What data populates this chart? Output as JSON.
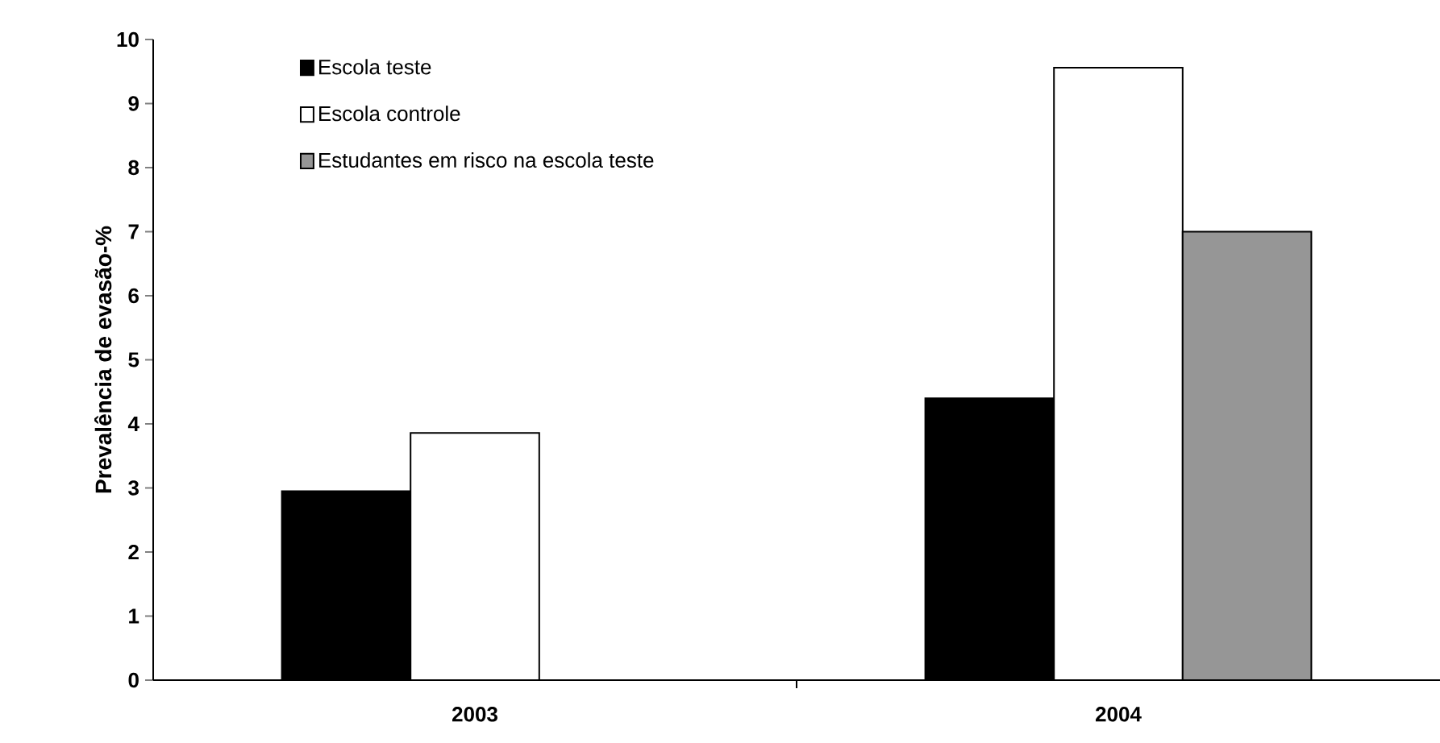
{
  "chart_data": {
    "type": "bar",
    "ylabel": "Prevalência de evasão-%",
    "categories": [
      "2003",
      "2004"
    ],
    "series": [
      {
        "name": "Escola teste",
        "color": "#000000",
        "values": [
          2.95,
          4.4
        ]
      },
      {
        "name": "Escola controle",
        "color": "#ffffff",
        "values": [
          3.86,
          9.56
        ]
      },
      {
        "name": "Estudantes em risco na escola teste",
        "color": "#969696",
        "values": [
          null,
          7.0
        ]
      }
    ],
    "ylim": [
      0,
      10
    ],
    "yticks": [
      0,
      1,
      2,
      3,
      4,
      5,
      6,
      7,
      8,
      9,
      10
    ],
    "legend": "top left",
    "grid": false
  }
}
